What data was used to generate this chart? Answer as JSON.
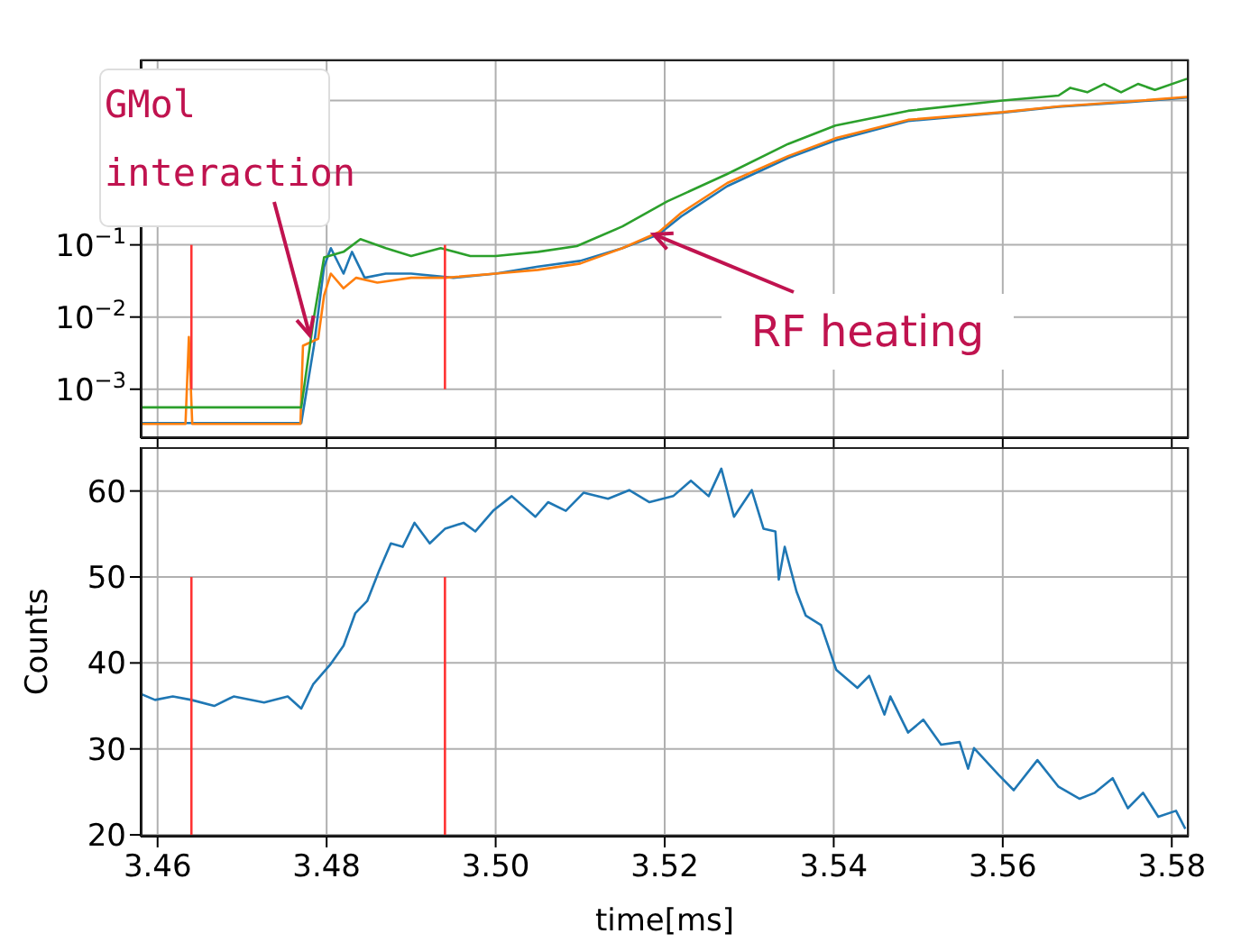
{
  "chart_data": [
    {
      "type": "line",
      "log": "y",
      "grid": true,
      "tick_labels": "y",
      "xlim": [
        3.458,
        3.582
      ],
      "xticks": [
        3.46,
        3.48,
        3.5,
        3.52,
        3.54,
        3.56,
        3.58
      ],
      "ylim": [
        0.00021,
        37
      ],
      "yticks": [
        {
          "value": 0.001,
          "label": "10$^{−3}$"
        },
        {
          "value": 0.01,
          "label": "10$^{−2}$"
        },
        {
          "value": 0.1,
          "label": "10$^{−1}$"
        },
        {
          "value": 1,
          "label": null
        },
        {
          "value": 10,
          "label": null
        }
      ],
      "series": [
        {
          "color": "#1f77b4",
          "x": [
            3.458,
            3.477,
            3.4785,
            3.4797,
            3.4805,
            3.482,
            3.483,
            3.4845,
            3.487,
            3.49,
            3.495,
            3.5,
            3.505,
            3.51,
            3.515,
            3.5193,
            3.522,
            3.5274,
            3.5346,
            3.5402,
            3.5488,
            3.56,
            3.5666,
            3.575,
            3.5818
          ],
          "values": [
            0.00034,
            0.00034,
            0.004,
            0.05,
            0.09,
            0.04,
            0.08,
            0.035,
            0.04,
            0.04,
            0.035,
            0.04,
            0.05,
            0.06,
            0.09,
            0.14,
            0.25,
            0.65,
            1.6,
            2.8,
            5.2,
            6.8,
            8.2,
            9.5,
            11
          ]
        },
        {
          "color": "#ff7f0e",
          "x": [
            3.458,
            3.4633,
            3.4637,
            3.4641,
            3.4769,
            3.4772,
            3.479,
            3.4797,
            3.4805,
            3.482,
            3.4835,
            3.486,
            3.49,
            3.494,
            3.5,
            3.505,
            3.51,
            3.515,
            3.5193,
            3.522,
            3.5274,
            3.5346,
            3.5402,
            3.5488,
            3.56,
            3.5666,
            3.575,
            3.5818
          ],
          "values": [
            0.00033,
            0.00033,
            0.0053,
            0.00033,
            0.00033,
            0.004,
            0.005,
            0.02,
            0.04,
            0.025,
            0.035,
            0.03,
            0.035,
            0.035,
            0.04,
            0.045,
            0.055,
            0.09,
            0.15,
            0.28,
            0.72,
            1.7,
            3,
            5.4,
            6.9,
            8.3,
            9.7,
            11.2
          ]
        },
        {
          "color": "#2ca02c",
          "x": [
            3.458,
            3.477,
            3.4785,
            3.4797,
            3.482,
            3.484,
            3.487,
            3.49,
            3.4935,
            3.497,
            3.5,
            3.505,
            3.5096,
            3.515,
            3.5203,
            3.5274,
            3.5346,
            3.5402,
            3.5488,
            3.56,
            3.5666,
            3.568,
            3.57,
            3.572,
            3.574,
            3.576,
            3.578,
            3.5818
          ],
          "values": [
            0.00056,
            0.00056,
            0.01,
            0.067,
            0.08,
            0.12,
            0.09,
            0.07,
            0.09,
            0.07,
            0.07,
            0.08,
            0.096,
            0.18,
            0.4,
            0.96,
            2.5,
            4.5,
            7.2,
            10,
            11.7,
            15,
            13,
            17,
            13,
            17,
            14,
            20
          ]
        },
        {
          "color": "#ff3333",
          "x": [
            3.464,
            3.464
          ],
          "values": [
            0.001,
            0.1
          ]
        },
        {
          "color": "#ff3333",
          "x": [
            3.494,
            3.494
          ],
          "values": [
            0.001,
            0.1
          ]
        }
      ],
      "annotations": [
        {
          "text": "GMol interaction",
          "x": 3.478,
          "y": 0.0056
        },
        {
          "text": "RF heating",
          "x": 3.5187,
          "y": 0.14
        }
      ]
    },
    {
      "type": "line",
      "grid": true,
      "xlabel": "time[ms]",
      "ylabel": "Counts",
      "xlim": [
        3.458,
        3.582
      ],
      "xticks": [
        3.46,
        3.48,
        {
          "value": 3.5,
          "label": "3.50"
        },
        3.52,
        3.54,
        3.56,
        3.58
      ],
      "ylim": [
        19.8,
        65.1
      ],
      "yticks": [
        20,
        30,
        40,
        50,
        60
      ],
      "series": [
        {
          "color": "#1f77b4",
          "x": [
            3.458,
            3.4597,
            3.4618,
            3.464,
            3.4667,
            3.469,
            3.4726,
            3.4754,
            3.477,
            3.4784,
            3.4805,
            3.482,
            3.4834,
            3.4848,
            3.4862,
            3.4876,
            3.489,
            3.4904,
            3.4922,
            3.494,
            3.4962,
            3.4976,
            3.4997,
            3.5019,
            3.5047,
            3.5062,
            3.5083,
            3.5104,
            3.5133,
            3.5158,
            3.5182,
            3.521,
            3.5231,
            3.5252,
            3.5267,
            3.5282,
            3.5303,
            3.5317,
            3.5331,
            3.5335,
            3.5342,
            3.5356,
            3.5367,
            3.5385,
            3.5403,
            3.5428,
            3.5442,
            3.546,
            3.5467,
            3.5488,
            3.5506,
            3.5527,
            3.5549,
            3.5559,
            3.5566,
            3.5595,
            3.5613,
            3.5641,
            3.5666,
            3.5691,
            3.5709,
            3.573,
            3.5748,
            3.5766,
            3.5784,
            3.5805,
            3.5816
          ],
          "values": [
            36.4,
            35.7,
            36.1,
            35.7,
            35,
            36.1,
            35.4,
            36.1,
            34.7,
            37.5,
            39.9,
            42,
            45.8,
            47.2,
            50.7,
            53.9,
            53.5,
            56.3,
            53.9,
            55.6,
            56.3,
            55.3,
            57.7,
            59.4,
            57,
            58.7,
            57.7,
            59.8,
            59.1,
            60.1,
            58.7,
            59.4,
            61.2,
            59.4,
            62.6,
            57,
            60.1,
            55.6,
            55.3,
            49.7,
            53.5,
            48.3,
            45.5,
            44.4,
            39.2,
            37.1,
            38.5,
            34,
            36.1,
            31.9,
            33.4,
            30.5,
            30.8,
            27.7,
            30.1,
            27,
            25.2,
            28.7,
            25.6,
            24.2,
            24.9,
            26.6,
            23.1,
            24.9,
            22.1,
            22.8,
            20.7
          ]
        },
        {
          "color": "#ff3333",
          "x": [
            3.464,
            3.464
          ],
          "values": [
            20,
            50
          ]
        },
        {
          "color": "#ff3333",
          "x": [
            3.494,
            3.494
          ],
          "values": [
            20,
            50
          ]
        }
      ]
    }
  ]
}
